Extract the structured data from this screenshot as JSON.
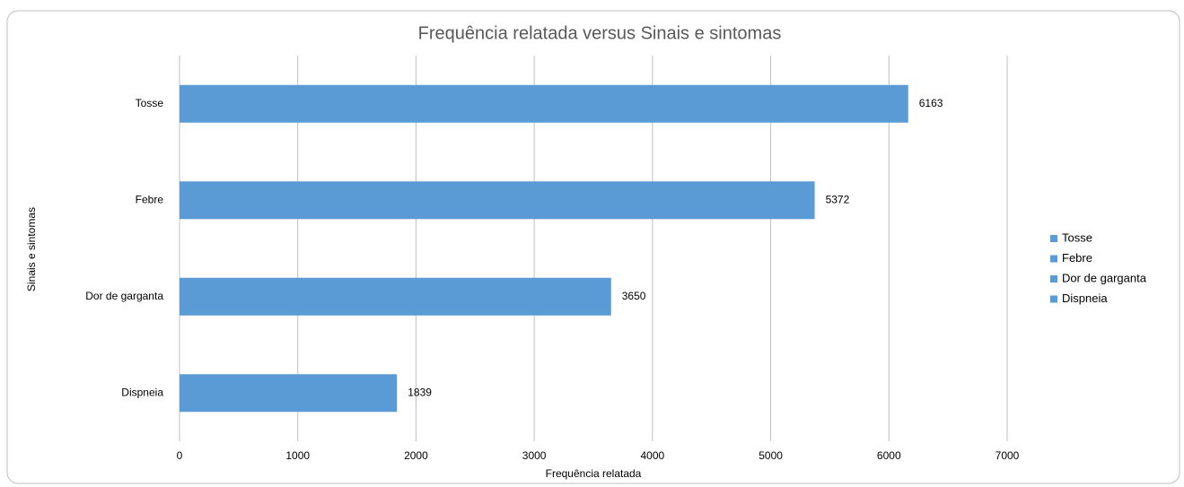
{
  "chart_data": {
    "type": "bar",
    "orientation": "horizontal",
    "title": "Frequência relatada  versus Sinais e sintomas",
    "x_label": "Frequência relatada",
    "y_label": "Sinais e sintomas",
    "categories": [
      "Tosse",
      "Febre",
      "Dor de garganta",
      "Dispneia"
    ],
    "values": [
      6163,
      5372,
      3650,
      1839
    ],
    "color": "#5b9bd5",
    "xlim": [
      0,
      7000
    ],
    "xticks": [
      0,
      1000,
      2000,
      3000,
      4000,
      5000,
      6000,
      7000
    ],
    "grid": true,
    "legend": "right"
  }
}
